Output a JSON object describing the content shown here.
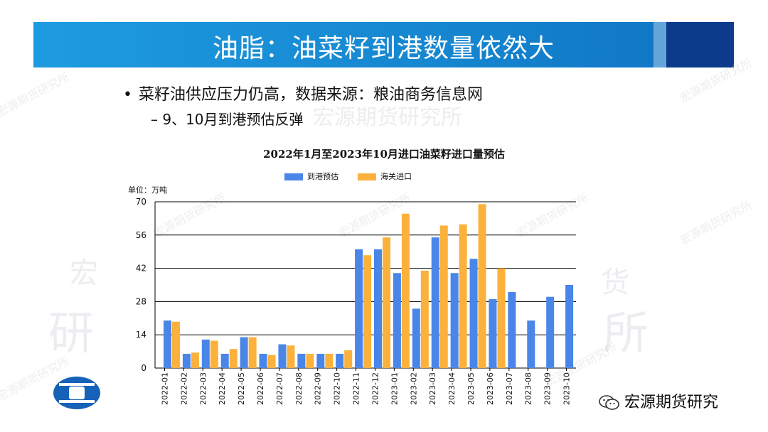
{
  "slide": {
    "title": "油脂：油菜籽到港数量依然大",
    "bullet_1": "菜籽油供应压力仍高，数据来源：粮油商务信息网",
    "bullet_1_marker": "•",
    "bullet_2": "– 9、10月到港预估反弹"
  },
  "branding": {
    "wechat_account": "宏源期货研究",
    "watermark_small": "宏源期货研究所",
    "watermark_big_left": "研",
    "watermark_big_right": "所",
    "watermark_big_left_top": "宏",
    "watermark_big_right_top": "货",
    "watermark_mid": "宏源期货研究所"
  },
  "colors": {
    "banner": "#1585cf",
    "series_arrival": "#4a86e8",
    "series_customs": "#fbb13c"
  },
  "chart_data": {
    "type": "bar",
    "title": "2022年1月至2023年10月进口油菜籽进口量预估",
    "unit_label": "单位：万吨",
    "categories": [
      "2022-01",
      "2022-02",
      "2022-03",
      "2022-04",
      "2022-05",
      "2022-06",
      "2022-07",
      "2022-08",
      "2022-09",
      "2022-10",
      "2022-11",
      "2022-12",
      "2023-01",
      "2023-02",
      "2023-03",
      "2023-04",
      "2023-05",
      "2023-06",
      "2023-07",
      "2023-08",
      "2023-09",
      "2023-10"
    ],
    "yticks": [
      "0",
      "14",
      "28",
      "42",
      "56",
      "70"
    ],
    "ylim": [
      0,
      70
    ],
    "grid": true,
    "legend_position": "top",
    "series": [
      {
        "name": "到港预估",
        "values": [
          20,
          6,
          12,
          6,
          13,
          6,
          10,
          6,
          6,
          6,
          50,
          50,
          40,
          25,
          55,
          40,
          46,
          29,
          32,
          20,
          30,
          35
        ]
      },
      {
        "name": "海关进口",
        "values": [
          19.5,
          6.5,
          11.5,
          8,
          13,
          5.5,
          9.5,
          6,
          6,
          7.5,
          47.5,
          55,
          65,
          41,
          60,
          60.5,
          69,
          42,
          null,
          null,
          null,
          null
        ]
      }
    ]
  }
}
